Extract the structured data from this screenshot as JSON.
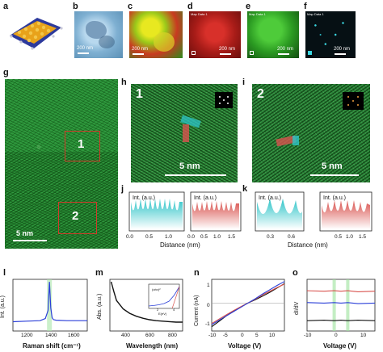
{
  "panel_labels": {
    "a": "a",
    "b": "b",
    "c": "c",
    "d": "d",
    "e": "e",
    "f": "f",
    "g": "g",
    "h": "h",
    "i": "i",
    "j": "j",
    "k": "k",
    "l": "l",
    "m": "m",
    "n": "n",
    "o": "o"
  },
  "scale_bars": {
    "b": "200 nm",
    "c": "200 nm",
    "d": "200 nm",
    "e": "200 nm",
    "f": "200 nm",
    "g": "5 nm",
    "h": "5 nm",
    "i": "5 nm"
  },
  "map_tags": {
    "d": "Map Data 1",
    "e": "Map Data 1",
    "f": "Map Data 1"
  },
  "regions": {
    "r1": "1",
    "r2": "2",
    "h_num": "1",
    "i_num": "2"
  },
  "colors": {
    "cyan": "#2ec4c8",
    "red": "#d9534f",
    "green_em": "#2f9a3e",
    "blue": "#2b3fd8"
  },
  "profiles": {
    "ylabel": "Int. (a.u.)",
    "xlabel": "Distance (nm)",
    "j_left_ticks": [
      "0.0",
      "0.5",
      "1.0"
    ],
    "j_right_ticks": [
      "0.0",
      "0.5",
      "1.0",
      "1.5"
    ],
    "k_left_ticks": [
      "0.3",
      "0.6"
    ],
    "k_right_ticks": [
      "0.5",
      "1.0",
      "1.5"
    ]
  },
  "chart_data": [
    {
      "panel": "l",
      "type": "line",
      "xlabel": "Raman shift (cm⁻¹)",
      "ylabel": "Int. (a.u.)",
      "xticks": [
        "1200",
        "1400",
        "1600"
      ],
      "xlim": [
        1100,
        1650
      ],
      "series": [
        {
          "x": [
            1100,
            1200,
            1300,
            1340,
            1360,
            1370,
            1380,
            1390,
            1400,
            1420,
            1500,
            1600,
            1650
          ],
          "values": [
            0.18,
            0.19,
            0.2,
            0.24,
            0.4,
            0.95,
            0.45,
            0.26,
            0.22,
            0.21,
            0.2,
            0.2,
            0.2
          ]
        }
      ]
    },
    {
      "panel": "m",
      "type": "line",
      "xlabel": "Wavelength (nm)",
      "ylabel": "Abs. (a.u.)",
      "xticks": [
        "400",
        "600",
        "800"
      ],
      "xlim": [
        250,
        800
      ],
      "series": [
        {
          "x": [
            260,
            280,
            300,
            350,
            400,
            450,
            500,
            550,
            600,
            650,
            700,
            750,
            800
          ],
          "values": [
            1.0,
            0.8,
            0.62,
            0.45,
            0.36,
            0.3,
            0.26,
            0.23,
            0.21,
            0.2,
            0.19,
            0.18,
            0.18
          ]
        }
      ],
      "inset": {
        "xlabel": "E(eV)",
        "ylabel": "(αhν)²",
        "xticks": [
          "2",
          "4"
        ],
        "x": [
          1.5,
          2,
          2.5,
          3,
          3.5,
          4,
          4.5
        ],
        "values": [
          0.1,
          0.12,
          0.15,
          0.2,
          0.3,
          0.55,
          0.9
        ]
      }
    },
    {
      "panel": "n",
      "type": "line",
      "xlabel": "Voltage (V)",
      "ylabel": "Current (nA)",
      "xticks": [
        "-10",
        "-5",
        "0",
        "5",
        "10"
      ],
      "yticks": [
        "1",
        "0",
        "-1"
      ],
      "xlim": [
        -10,
        10
      ],
      "ylim": [
        -1.3,
        1.1
      ],
      "series": [
        {
          "x": [
            -10,
            -8,
            -6,
            -4,
            -2,
            0,
            2,
            4,
            6,
            8,
            10
          ],
          "values": [
            -1.1,
            -0.85,
            -0.6,
            -0.38,
            -0.18,
            0,
            0.15,
            0.32,
            0.5,
            0.7,
            0.9
          ]
        },
        {
          "x": [
            -10,
            -8,
            -6,
            -4,
            -2,
            0,
            2,
            4,
            6,
            8,
            10
          ],
          "values": [
            -0.95,
            -0.75,
            -0.55,
            -0.35,
            -0.17,
            0,
            0.18,
            0.38,
            0.55,
            0.72,
            0.88
          ]
        },
        {
          "x": [
            -10,
            -8,
            -6,
            -4,
            -2,
            0,
            2,
            4,
            6,
            8,
            10
          ],
          "values": [
            -1.0,
            -0.8,
            -0.6,
            -0.4,
            -0.2,
            0,
            0.2,
            0.42,
            0.62,
            0.82,
            1.0
          ]
        }
      ]
    },
    {
      "panel": "o",
      "type": "line",
      "xlabel": "Voltage (V)",
      "ylabel": "dI/dV",
      "xticks": [
        "-10",
        "0",
        "10"
      ],
      "xlim": [
        -10,
        10
      ],
      "series": [
        {
          "x": [
            -10,
            -5,
            -2,
            0,
            2,
            5,
            10
          ],
          "values": [
            0.78,
            0.77,
            0.78,
            0.77,
            0.78,
            0.76,
            0.77
          ]
        },
        {
          "x": [
            -10,
            -5,
            -2,
            0,
            2,
            5,
            10
          ],
          "values": [
            0.55,
            0.54,
            0.55,
            0.54,
            0.55,
            0.53,
            0.54
          ]
        },
        {
          "x": [
            -10,
            -5,
            -2,
            0,
            2,
            5,
            10
          ],
          "values": [
            0.2,
            0.21,
            0.2,
            0.21,
            0.2,
            0.21,
            0.2
          ]
        }
      ]
    }
  ]
}
